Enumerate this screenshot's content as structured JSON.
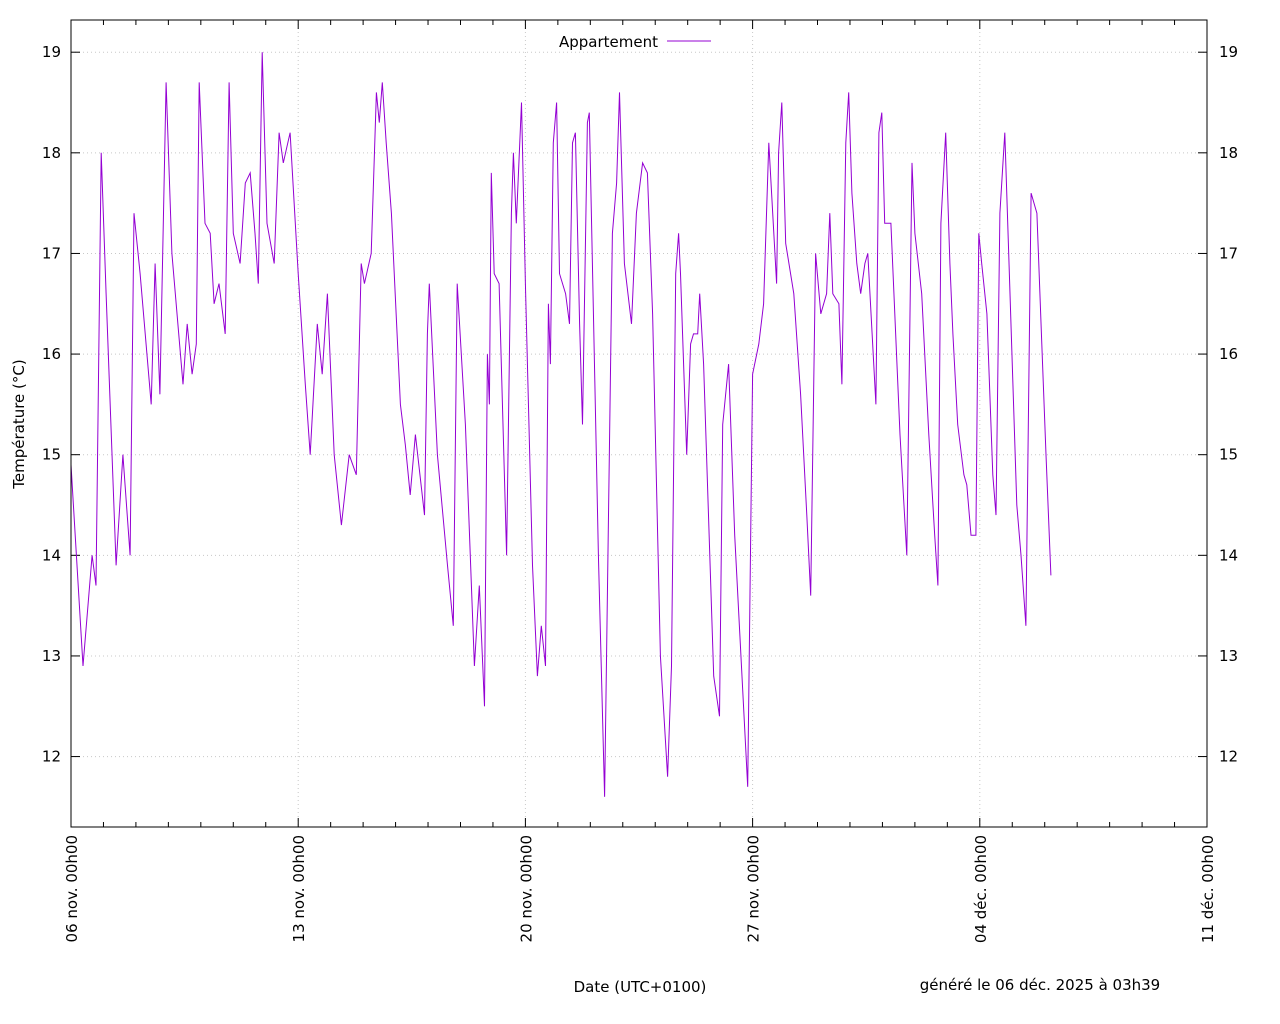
{
  "chart_data": {
    "type": "line",
    "title": "",
    "xlabel": "Date (UTC+0100)",
    "ylabel": "Température (°C)",
    "footer": "généré le 06 déc. 2025 à 03h39",
    "x_unit": "days since 06 nov. 00h00",
    "xlim": [
      0,
      35
    ],
    "ylim": [
      11.3,
      19.32
    ],
    "y_ticks": [
      12,
      13,
      14,
      15,
      16,
      17,
      18,
      19
    ],
    "x_ticks": [
      {
        "day": 0,
        "label": "06 nov. 00h00"
      },
      {
        "day": 7,
        "label": "13 nov. 00h00"
      },
      {
        "day": 14,
        "label": "20 nov. 00h00"
      },
      {
        "day": 21,
        "label": "27 nov. 00h00"
      },
      {
        "day": 28,
        "label": "04 déc. 00h00"
      },
      {
        "day": 35,
        "label": "11 déc. 00h00"
      }
    ],
    "grid": true,
    "legend_position": "top-center",
    "series": [
      {
        "name": "Appartement",
        "color": "#9400d3",
        "points": [
          [
            0,
            14.9
          ],
          [
            0.37,
            12.9
          ],
          [
            0.65,
            14.0
          ],
          [
            0.77,
            13.7
          ],
          [
            0.93,
            18.0
          ],
          [
            1.08,
            16.6
          ],
          [
            1.39,
            13.9
          ],
          [
            1.6,
            15.0
          ],
          [
            1.82,
            14.0
          ],
          [
            1.94,
            17.4
          ],
          [
            2.13,
            16.8
          ],
          [
            2.47,
            15.5
          ],
          [
            2.59,
            16.9
          ],
          [
            2.74,
            15.6
          ],
          [
            2.93,
            18.7
          ],
          [
            3.11,
            17.0
          ],
          [
            3.45,
            15.7
          ],
          [
            3.58,
            16.3
          ],
          [
            3.73,
            15.8
          ],
          [
            3.86,
            16.1
          ],
          [
            3.95,
            18.7
          ],
          [
            4.13,
            17.3
          ],
          [
            4.29,
            17.2
          ],
          [
            4.41,
            16.5
          ],
          [
            4.56,
            16.7
          ],
          [
            4.75,
            16.2
          ],
          [
            4.87,
            18.7
          ],
          [
            5.0,
            17.2
          ],
          [
            5.21,
            16.9
          ],
          [
            5.37,
            17.7
          ],
          [
            5.52,
            17.8
          ],
          [
            5.67,
            17.2
          ],
          [
            5.77,
            16.7
          ],
          [
            5.89,
            19.0
          ],
          [
            6.04,
            17.3
          ],
          [
            6.26,
            16.9
          ],
          [
            6.41,
            18.2
          ],
          [
            6.54,
            17.9
          ],
          [
            6.75,
            18.2
          ],
          [
            7.0,
            16.8
          ],
          [
            7.22,
            15.7
          ],
          [
            7.37,
            15.0
          ],
          [
            7.59,
            16.3
          ],
          [
            7.74,
            15.8
          ],
          [
            7.9,
            16.6
          ],
          [
            8.11,
            15.0
          ],
          [
            8.33,
            14.3
          ],
          [
            8.57,
            15.0
          ],
          [
            8.79,
            14.8
          ],
          [
            8.94,
            16.9
          ],
          [
            9.04,
            16.7
          ],
          [
            9.25,
            17.0
          ],
          [
            9.41,
            18.6
          ],
          [
            9.5,
            18.3
          ],
          [
            9.59,
            18.7
          ],
          [
            9.71,
            18.1
          ],
          [
            9.87,
            17.4
          ],
          [
            10.15,
            15.5
          ],
          [
            10.3,
            15.1
          ],
          [
            10.45,
            14.6
          ],
          [
            10.61,
            15.2
          ],
          [
            10.89,
            14.4
          ],
          [
            10.98,
            16.2
          ],
          [
            11.04,
            16.7
          ],
          [
            11.29,
            15.0
          ],
          [
            11.6,
            13.9
          ],
          [
            11.78,
            13.3
          ],
          [
            11.9,
            16.7
          ],
          [
            12.15,
            15.3
          ],
          [
            12.43,
            12.9
          ],
          [
            12.58,
            13.7
          ],
          [
            12.74,
            12.5
          ],
          [
            12.83,
            16.0
          ],
          [
            12.89,
            15.5
          ],
          [
            12.95,
            17.8
          ],
          [
            13.04,
            16.8
          ],
          [
            13.19,
            16.7
          ],
          [
            13.42,
            14.0
          ],
          [
            13.57,
            17.4
          ],
          [
            13.63,
            18.0
          ],
          [
            13.72,
            17.3
          ],
          [
            13.88,
            18.5
          ],
          [
            14.0,
            16.7
          ],
          [
            14.22,
            13.9
          ],
          [
            14.37,
            12.8
          ],
          [
            14.49,
            13.3
          ],
          [
            14.62,
            12.9
          ],
          [
            14.71,
            16.5
          ],
          [
            14.77,
            15.9
          ],
          [
            14.86,
            18.1
          ],
          [
            14.96,
            18.5
          ],
          [
            15.05,
            16.8
          ],
          [
            15.24,
            16.6
          ],
          [
            15.36,
            16.3
          ],
          [
            15.45,
            18.1
          ],
          [
            15.54,
            18.2
          ],
          [
            15.67,
            16.3
          ],
          [
            15.76,
            15.3
          ],
          [
            15.91,
            18.3
          ],
          [
            15.97,
            18.4
          ],
          [
            16.25,
            14.0
          ],
          [
            16.44,
            11.6
          ],
          [
            16.68,
            17.2
          ],
          [
            16.81,
            17.7
          ],
          [
            16.9,
            18.6
          ],
          [
            17.05,
            16.9
          ],
          [
            17.27,
            16.3
          ],
          [
            17.42,
            17.4
          ],
          [
            17.61,
            17.9
          ],
          [
            17.76,
            17.8
          ],
          [
            17.92,
            16.4
          ],
          [
            18.16,
            13.0
          ],
          [
            18.38,
            11.8
          ],
          [
            18.5,
            12.9
          ],
          [
            18.63,
            16.8
          ],
          [
            18.72,
            17.2
          ],
          [
            18.78,
            16.8
          ],
          [
            18.97,
            15.0
          ],
          [
            19.09,
            16.1
          ],
          [
            19.18,
            16.2
          ],
          [
            19.31,
            16.2
          ],
          [
            19.37,
            16.6
          ],
          [
            19.49,
            15.9
          ],
          [
            19.8,
            12.8
          ],
          [
            19.98,
            12.4
          ],
          [
            20.08,
            15.3
          ],
          [
            20.26,
            15.9
          ],
          [
            20.45,
            14.2
          ],
          [
            20.85,
            11.7
          ],
          [
            21.0,
            15.8
          ],
          [
            21.19,
            16.1
          ],
          [
            21.34,
            16.5
          ],
          [
            21.5,
            18.1
          ],
          [
            21.62,
            17.4
          ],
          [
            21.74,
            16.7
          ],
          [
            21.8,
            18.0
          ],
          [
            21.9,
            18.5
          ],
          [
            22.02,
            17.1
          ],
          [
            22.27,
            16.6
          ],
          [
            22.48,
            15.6
          ],
          [
            22.67,
            14.4
          ],
          [
            22.79,
            13.6
          ],
          [
            22.94,
            17.0
          ],
          [
            23.1,
            16.4
          ],
          [
            23.28,
            16.6
          ],
          [
            23.38,
            17.4
          ],
          [
            23.47,
            16.6
          ],
          [
            23.66,
            16.5
          ],
          [
            23.75,
            15.7
          ],
          [
            23.87,
            18.1
          ],
          [
            23.96,
            18.6
          ],
          [
            24.06,
            17.6
          ],
          [
            24.21,
            16.9
          ],
          [
            24.33,
            16.6
          ],
          [
            24.46,
            16.9
          ],
          [
            24.55,
            17.0
          ],
          [
            24.8,
            15.5
          ],
          [
            24.89,
            18.2
          ],
          [
            24.98,
            18.4
          ],
          [
            25.07,
            17.3
          ],
          [
            25.26,
            17.3
          ],
          [
            25.54,
            15.2
          ],
          [
            25.75,
            14.0
          ],
          [
            25.91,
            17.9
          ],
          [
            26.0,
            17.2
          ],
          [
            26.21,
            16.6
          ],
          [
            26.43,
            15.2
          ],
          [
            26.61,
            14.2
          ],
          [
            26.71,
            13.7
          ],
          [
            26.8,
            17.3
          ],
          [
            26.95,
            18.2
          ],
          [
            27.08,
            16.9
          ],
          [
            27.17,
            16.2
          ],
          [
            27.32,
            15.3
          ],
          [
            27.51,
            14.8
          ],
          [
            27.6,
            14.7
          ],
          [
            27.73,
            14.2
          ],
          [
            27.88,
            14.2
          ],
          [
            27.97,
            17.2
          ],
          [
            28.06,
            16.9
          ],
          [
            28.22,
            16.4
          ],
          [
            28.4,
            14.8
          ],
          [
            28.5,
            14.4
          ],
          [
            28.62,
            17.4
          ],
          [
            28.77,
            18.2
          ],
          [
            28.93,
            16.6
          ],
          [
            29.14,
            14.5
          ],
          [
            29.27,
            14.0
          ],
          [
            29.42,
            13.3
          ],
          [
            29.58,
            17.6
          ],
          [
            29.76,
            17.4
          ],
          [
            29.91,
            16.1
          ],
          [
            30.04,
            15.0
          ],
          [
            30.19,
            13.8
          ]
        ]
      }
    ]
  }
}
